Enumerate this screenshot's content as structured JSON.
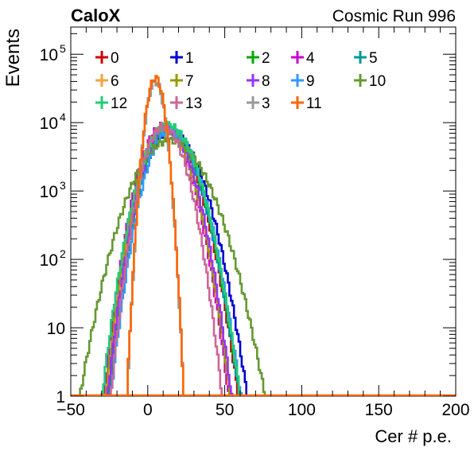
{
  "chart_data": {
    "type": "line",
    "title_left": "CaloX",
    "title_right": "Cosmic Run 996",
    "xlabel": "Cer # p.e.",
    "ylabel": "Events",
    "xlim": [
      -50,
      200
    ],
    "ylim": [
      1,
      250000
    ],
    "yscale": "log",
    "x_ticks": [
      -50,
      0,
      50,
      100,
      150,
      200
    ],
    "y_ticks": [
      {
        "value": 1,
        "label": "1",
        "exp": ""
      },
      {
        "value": 10,
        "label": "10",
        "exp": ""
      },
      {
        "value": 100,
        "label": "10",
        "exp": "2"
      },
      {
        "value": 1000,
        "label": "10",
        "exp": "3"
      },
      {
        "value": 10000,
        "label": "10",
        "exp": "4"
      },
      {
        "value": 100000,
        "label": "10",
        "exp": "5"
      }
    ],
    "legend_position": "top",
    "series": [
      {
        "name": "0",
        "color": "#cc0000",
        "peak": 8500,
        "mean": 12,
        "sigma_left": 9,
        "sigma_right": 11
      },
      {
        "name": "1",
        "color": "#0000cc",
        "peak": 7500,
        "mean": 14,
        "sigma_left": 10,
        "sigma_right": 12
      },
      {
        "name": "2",
        "color": "#00aa00",
        "peak": 8000,
        "mean": 13,
        "sigma_left": 9,
        "sigma_right": 11
      },
      {
        "name": "4",
        "color": "#cc00cc",
        "peak": 9000,
        "mean": 10,
        "sigma_left": 9,
        "sigma_right": 10
      },
      {
        "name": "5",
        "color": "#009999",
        "peak": 7800,
        "mean": 13,
        "sigma_left": 9,
        "sigma_right": 11
      },
      {
        "name": "6",
        "color": "#f5a040",
        "peak": 8800,
        "mean": 11,
        "sigma_left": 9,
        "sigma_right": 10
      },
      {
        "name": "7",
        "color": "#999900",
        "peak": 8600,
        "mean": 11,
        "sigma_left": 9,
        "sigma_right": 10
      },
      {
        "name": "8",
        "color": "#9933ff",
        "peak": 8200,
        "mean": 12,
        "sigma_left": 9,
        "sigma_right": 10
      },
      {
        "name": "9",
        "color": "#3399ff",
        "peak": 7600,
        "mean": 14,
        "sigma_left": 9,
        "sigma_right": 11
      },
      {
        "name": "10",
        "color": "#669933",
        "peak": 5500,
        "mean": 14,
        "sigma_left": 14,
        "sigma_right": 15
      },
      {
        "name": "12",
        "color": "#22cc77",
        "peak": 9200,
        "mean": 13,
        "sigma_left": 10,
        "sigma_right": 11
      },
      {
        "name": "13",
        "color": "#cc6699",
        "peak": 8700,
        "mean": 10,
        "sigma_left": 8,
        "sigma_right": 9
      },
      {
        "name": "3",
        "color": "#999999",
        "peak": 40000,
        "mean": 5,
        "sigma_left": 4,
        "sigma_right": 4
      },
      {
        "name": "11",
        "color": "#ff6600",
        "peak": 45000,
        "mean": 5,
        "sigma_left": 4,
        "sigma_right": 4
      }
    ]
  }
}
